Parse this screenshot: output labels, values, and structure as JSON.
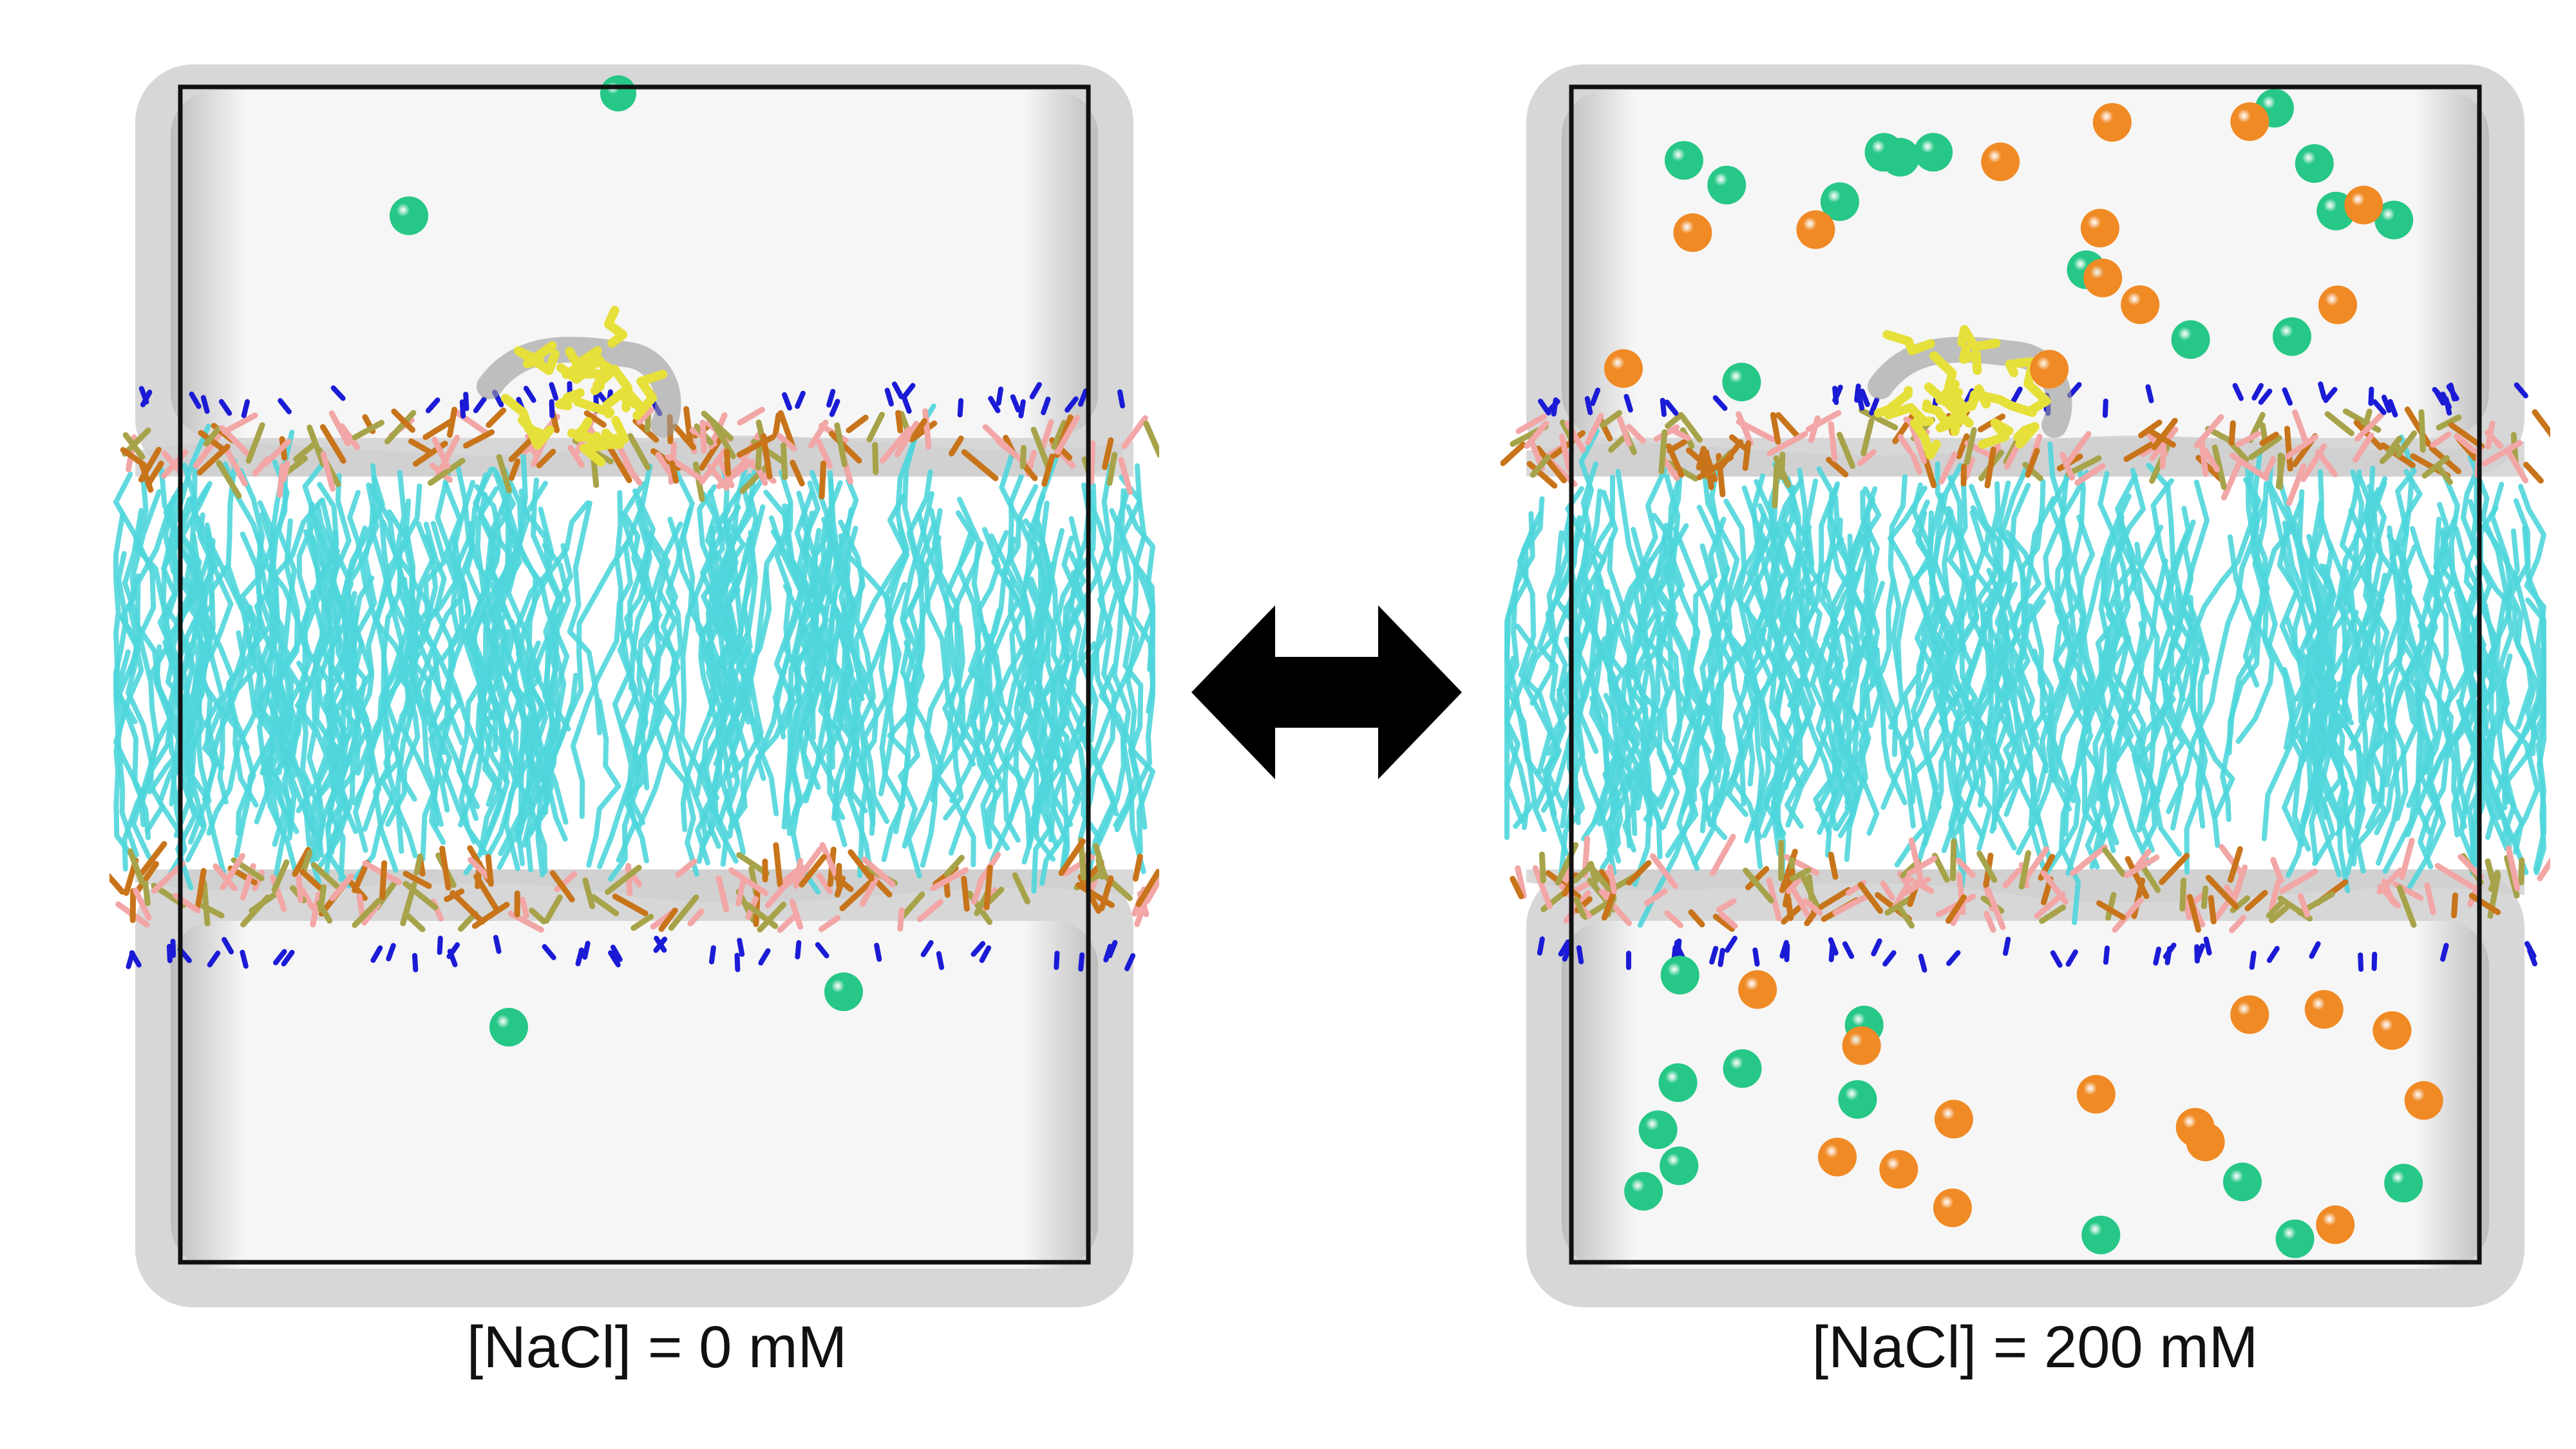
{
  "panels": [
    {
      "label": "[NaCl] = 0 mM",
      "nacl_mM": 0
    },
    {
      "label": "[NaCl] = 200 mM",
      "nacl_mM": 200
    }
  ],
  "arrow": {
    "icon": "double-headed-arrow-icon",
    "color": "#000000"
  },
  "colors": {
    "lipid_tails": "#4fd6dc",
    "phosphate_light": "#f2a6a6",
    "phosphate_dark": "#c8741a",
    "glycerol": "#a7a34a",
    "nitrogen": "#1b1bd6",
    "peptide": "#e6e03a",
    "sodium_ion": "#26c787",
    "chloride_ion": "#f08a25",
    "water_surface": "#bdbdbd",
    "box_outline": "#111111"
  }
}
